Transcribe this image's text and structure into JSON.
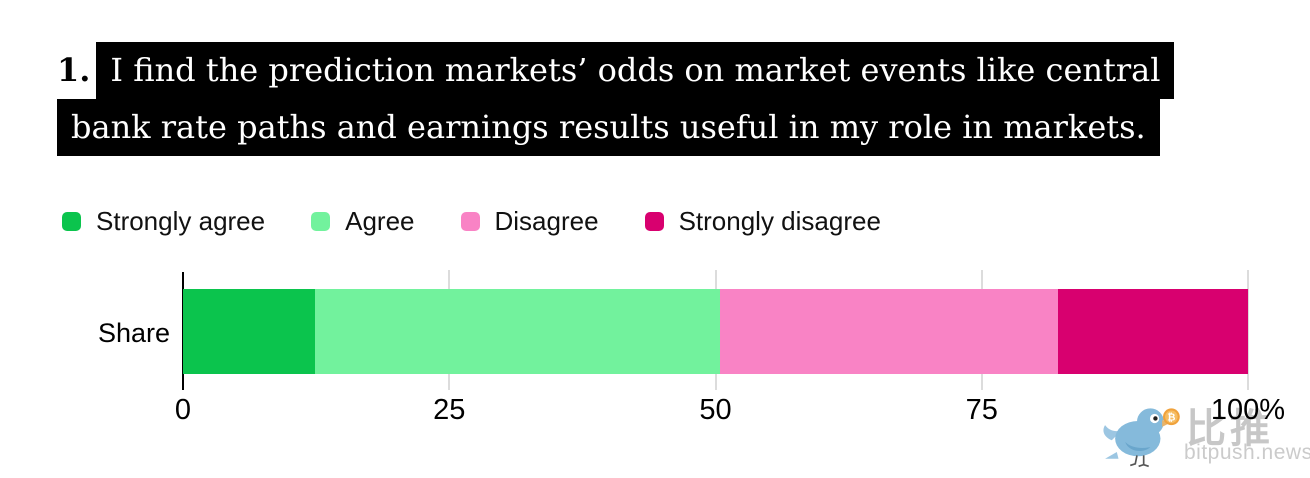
{
  "title": {
    "number": "1.",
    "line1": "I find the prediction markets’ odds on market events like central",
    "line2": "bank rate paths and earnings results useful in my role in markets.",
    "full_text": "1. I find the prediction markets’ odds on market events like central bank rate paths and earnings results useful in my role in markets."
  },
  "chart_data": {
    "type": "bar",
    "orientation": "horizontal-stacked",
    "title": "1. I find the prediction markets’ odds on market events like central bank rate paths and earnings results useful in my role in markets.",
    "categories": [
      "Share"
    ],
    "series": [
      {
        "name": "Strongly agree",
        "value": 12.4,
        "color": "#0bc44d"
      },
      {
        "name": "Agree",
        "value": 38.0,
        "color": "#72f29d"
      },
      {
        "name": "Disagree",
        "value": 31.8,
        "color": "#f983c5"
      },
      {
        "name": "Strongly disagree",
        "value": 17.8,
        "color": "#d8006f"
      }
    ],
    "xlabel": "",
    "ylabel": "",
    "xlim": [
      0,
      100
    ],
    "xticks": [
      {
        "value": 0,
        "label": "0"
      },
      {
        "value": 25,
        "label": "25"
      },
      {
        "value": 50,
        "label": "50"
      },
      {
        "value": 75,
        "label": "75"
      },
      {
        "value": 100,
        "label": "100%"
      }
    ],
    "legend_position": "top",
    "grid": "vertical-gridlines"
  },
  "style": {
    "title_bg": "#000000",
    "title_fg": "#ffffff",
    "grid_color": "#dcdcdc",
    "axis_color": "#000000"
  },
  "watermark": {
    "brand_cn": "比推",
    "brand_domain": "bitpush.news",
    "bird_color": "#85badb",
    "coin_color": "#f0a23c"
  }
}
